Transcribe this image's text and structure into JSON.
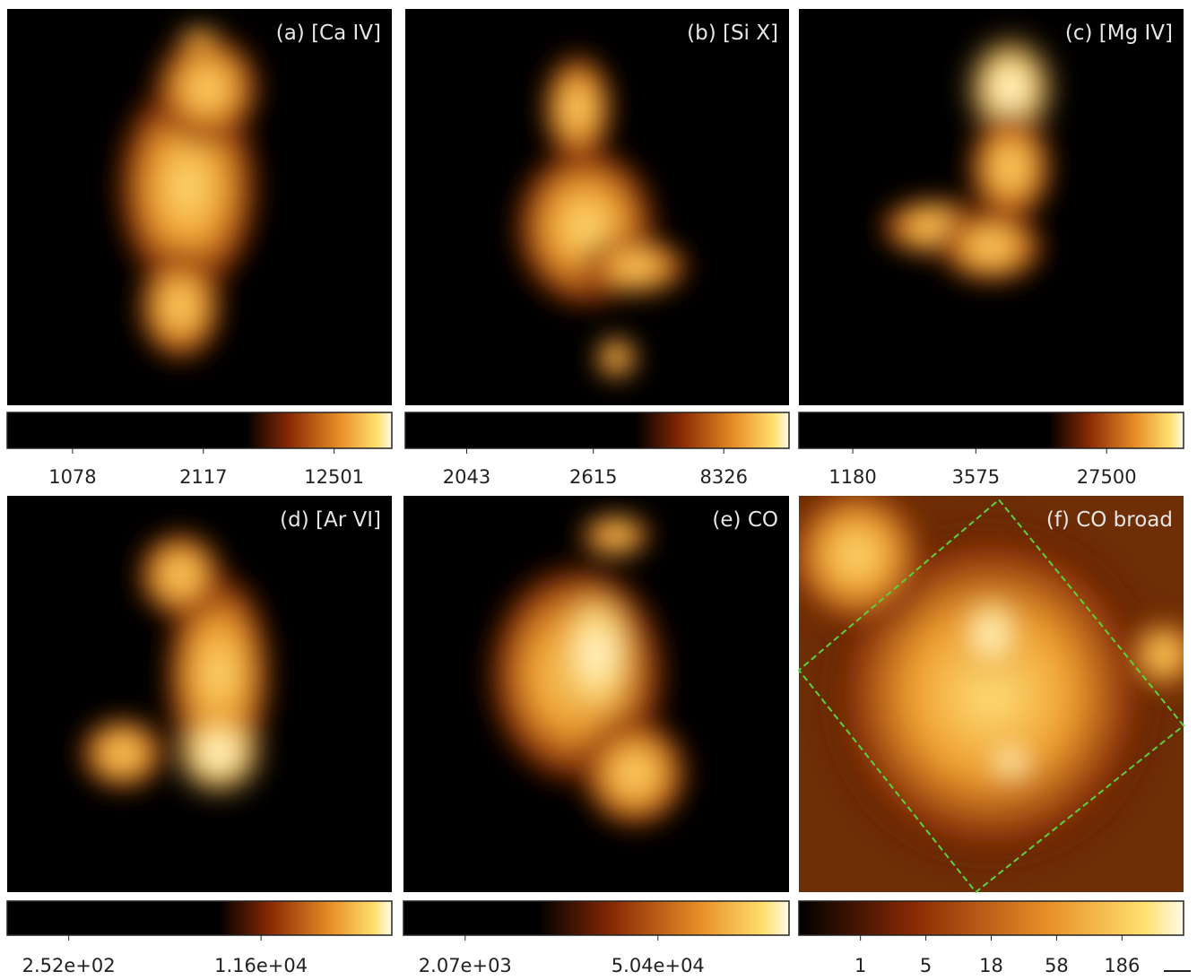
{
  "panels": [
    {
      "label": "(a) [Ca IV]",
      "ticks": [
        "1078",
        "2117",
        "12501"
      ]
    },
    {
      "label": "(b) [Si X]",
      "ticks": [
        "2043",
        "2615",
        "8326"
      ]
    },
    {
      "label": "(c) [Mg IV]",
      "ticks": [
        "1180",
        "3575",
        "27500"
      ]
    },
    {
      "label": "(d) [Ar VI]",
      "ticks": [
        "2.52e+02",
        "1.16e+04"
      ]
    },
    {
      "label": "(e) CO",
      "ticks": [
        "2.07e+03",
        "5.04e+04"
      ]
    },
    {
      "label": "(f) CO broad",
      "ticks": [
        "1",
        "5",
        "18",
        "58",
        "186"
      ]
    }
  ]
}
